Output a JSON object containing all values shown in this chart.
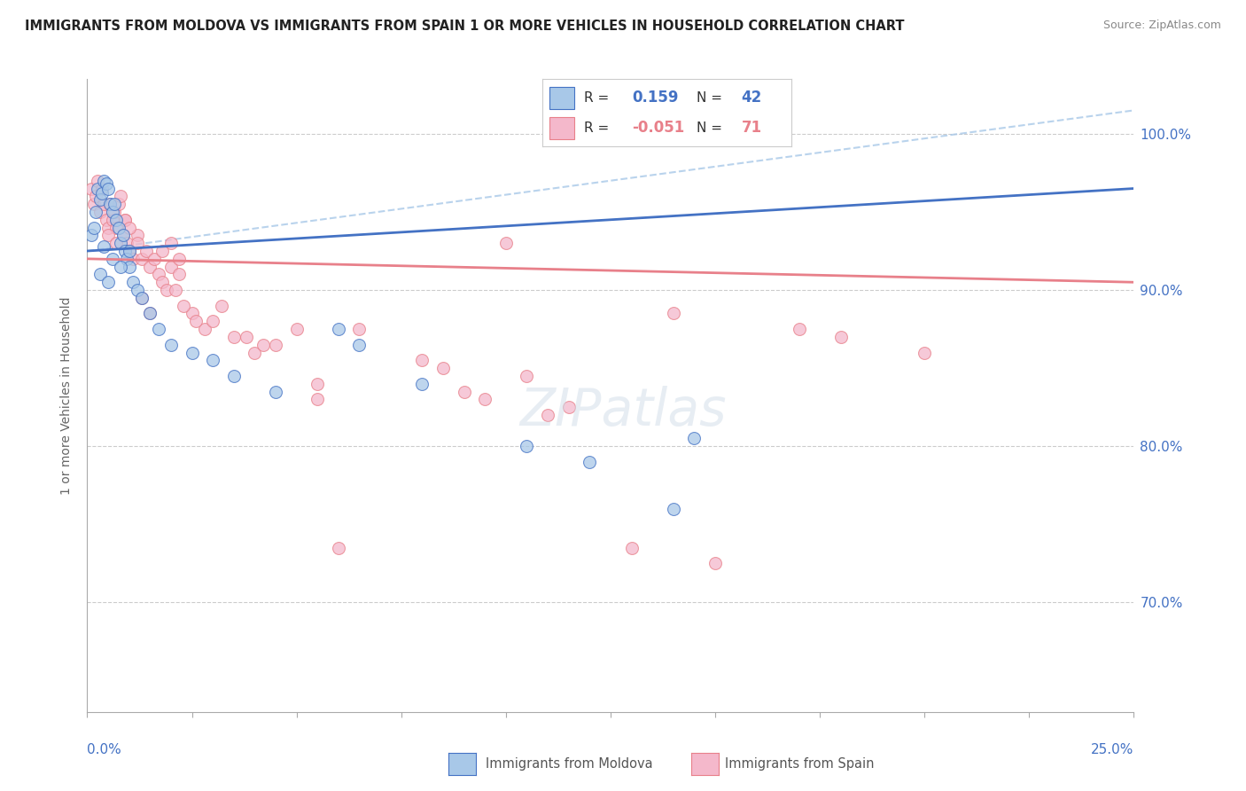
{
  "title": "IMMIGRANTS FROM MOLDOVA VS IMMIGRANTS FROM SPAIN 1 OR MORE VEHICLES IN HOUSEHOLD CORRELATION CHART",
  "source": "Source: ZipAtlas.com",
  "ylabel": "1 or more Vehicles in Household",
  "xmin": 0.0,
  "xmax": 25.0,
  "ymin": 63.0,
  "ymax": 103.5,
  "ytick_vals": [
    70.0,
    80.0,
    90.0,
    100.0
  ],
  "ytick_labels": [
    "70.0%",
    "80.0%",
    "90.0%",
    "100.0%"
  ],
  "moldova_color": "#a8c8e8",
  "spain_color": "#f4b8cb",
  "trend_moldova_color": "#4472c4",
  "trend_spain_color": "#e8808a",
  "dashed_line_color": "#a8c8e8",
  "background_color": "#ffffff",
  "moldova_points_x": [
    0.1,
    0.15,
    0.2,
    0.25,
    0.3,
    0.35,
    0.4,
    0.45,
    0.5,
    0.55,
    0.6,
    0.65,
    0.7,
    0.75,
    0.8,
    0.85,
    0.9,
    0.95,
    1.0,
    1.1,
    1.2,
    1.3,
    1.5,
    1.7,
    2.0,
    2.5,
    3.0,
    3.5,
    4.5,
    6.0,
    6.5,
    8.0,
    10.5,
    12.0,
    14.0,
    14.5,
    0.3,
    0.5,
    0.6,
    0.8,
    1.0,
    0.4
  ],
  "moldova_points_y": [
    93.5,
    94.0,
    95.0,
    96.5,
    95.8,
    96.2,
    97.0,
    96.8,
    96.5,
    95.5,
    95.0,
    95.5,
    94.5,
    94.0,
    93.0,
    93.5,
    92.5,
    92.0,
    91.5,
    90.5,
    90.0,
    89.5,
    88.5,
    87.5,
    86.5,
    86.0,
    85.5,
    84.5,
    83.5,
    87.5,
    86.5,
    84.0,
    80.0,
    79.0,
    76.0,
    80.5,
    91.0,
    90.5,
    92.0,
    91.5,
    92.5,
    92.8
  ],
  "spain_points_x": [
    0.1,
    0.15,
    0.2,
    0.25,
    0.3,
    0.35,
    0.4,
    0.45,
    0.5,
    0.55,
    0.6,
    0.65,
    0.7,
    0.75,
    0.8,
    0.85,
    0.9,
    0.95,
    1.0,
    1.1,
    1.2,
    1.3,
    1.4,
    1.5,
    1.6,
    1.7,
    1.8,
    1.9,
    2.0,
    2.1,
    2.2,
    2.5,
    2.8,
    3.0,
    3.2,
    3.5,
    4.0,
    4.5,
    5.0,
    5.5,
    6.0,
    8.0,
    9.0,
    10.0,
    10.5,
    11.5,
    13.0,
    14.0,
    15.0,
    17.0,
    18.0,
    20.0,
    1.3,
    1.5,
    2.3,
    2.6,
    3.8,
    4.2,
    5.5,
    6.5,
    8.5,
    9.5,
    11.0,
    1.8,
    2.0,
    2.2,
    0.5,
    0.7,
    0.9,
    1.0,
    1.2
  ],
  "spain_points_y": [
    96.5,
    95.5,
    96.0,
    97.0,
    95.0,
    96.5,
    95.5,
    94.5,
    94.0,
    95.5,
    94.5,
    95.0,
    94.0,
    95.5,
    96.0,
    93.5,
    94.5,
    93.0,
    92.5,
    92.0,
    93.5,
    92.0,
    92.5,
    91.5,
    92.0,
    91.0,
    90.5,
    90.0,
    91.5,
    90.0,
    91.0,
    88.5,
    87.5,
    88.0,
    89.0,
    87.0,
    86.0,
    86.5,
    87.5,
    83.0,
    73.5,
    85.5,
    83.5,
    93.0,
    84.5,
    82.5,
    73.5,
    88.5,
    72.5,
    87.5,
    87.0,
    86.0,
    89.5,
    88.5,
    89.0,
    88.0,
    87.0,
    86.5,
    84.0,
    87.5,
    85.0,
    83.0,
    82.0,
    92.5,
    93.0,
    92.0,
    93.5,
    93.0,
    94.5,
    94.0,
    93.0
  ],
  "trend_mol_x0": 0.0,
  "trend_mol_y0": 92.5,
  "trend_mol_x1": 25.0,
  "trend_mol_y1": 96.5,
  "trend_spa_x0": 0.0,
  "trend_spa_y0": 92.0,
  "trend_spa_x1": 25.0,
  "trend_spa_y1": 90.5,
  "dash_x0": 0.0,
  "dash_y0": 92.5,
  "dash_x1": 25.0,
  "dash_y1": 101.5
}
